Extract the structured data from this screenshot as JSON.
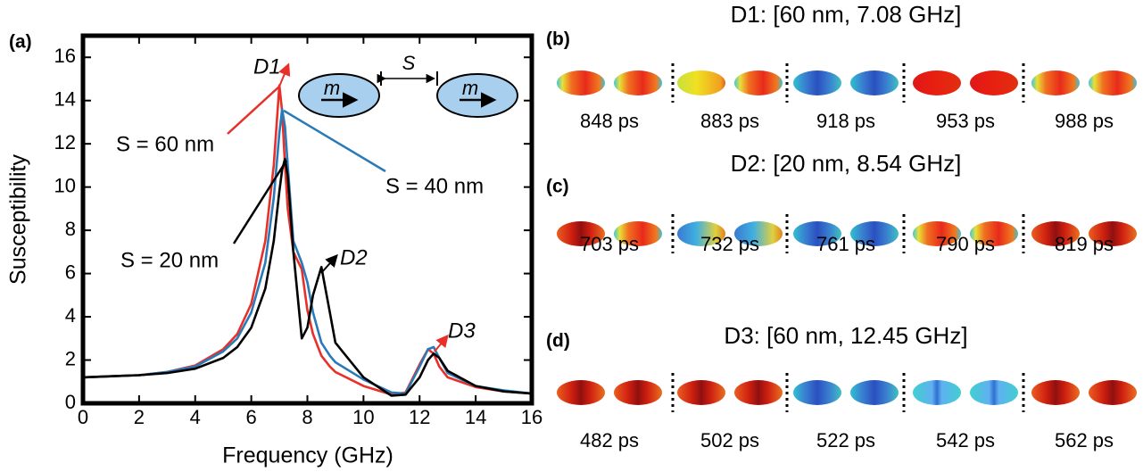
{
  "chart_data": {
    "type": "line",
    "panel_label": "(a)",
    "xlabel": "Frequency (GHz)",
    "ylabel": "Susceptibility",
    "x": [
      0,
      1,
      2,
      3,
      4,
      5,
      5.5,
      6,
      6.5,
      6.8,
      7,
      7.1,
      7.2,
      7.3,
      7.5,
      7.8,
      8,
      8.2,
      8.5,
      8.8,
      9,
      10,
      11,
      11.5,
      12,
      12.3,
      12.5,
      12.7,
      13,
      14,
      15,
      16
    ],
    "series": [
      {
        "name": "S = 60 nm",
        "color": "#e8302a",
        "values": [
          1.2,
          1.25,
          1.3,
          1.45,
          1.75,
          2.5,
          3.2,
          4.6,
          7.5,
          11,
          14.7,
          13.5,
          11,
          9,
          7,
          6.2,
          4.3,
          3.2,
          2.2,
          1.7,
          1.45,
          0.8,
          0.4,
          0.5,
          1.8,
          2.5,
          2.3,
          1.7,
          1.2,
          0.75,
          0.55,
          0.45
        ]
      },
      {
        "name": "S = 40 nm",
        "color": "#2a7ab8",
        "values": [
          1.2,
          1.25,
          1.3,
          1.45,
          1.7,
          2.4,
          3.0,
          4.2,
          6.5,
          9.5,
          12.5,
          13.6,
          12.8,
          11,
          7.5,
          6.5,
          5.6,
          4.2,
          2.8,
          2.2,
          1.9,
          1.1,
          0.5,
          0.45,
          1.7,
          2.5,
          2.6,
          2.1,
          1.4,
          0.8,
          0.6,
          0.45
        ]
      },
      {
        "name": "S = 20 nm",
        "color": "#000000",
        "values": [
          1.2,
          1.25,
          1.3,
          1.4,
          1.6,
          2.1,
          2.6,
          3.5,
          5.3,
          7.5,
          9.8,
          10.8,
          11.3,
          10.5,
          7,
          3.0,
          3.5,
          5,
          6.3,
          4.2,
          2.8,
          1.2,
          0.35,
          0.4,
          1.2,
          2.0,
          2.3,
          2.1,
          1.5,
          0.8,
          0.55,
          0.45
        ]
      }
    ],
    "annotations": [
      {
        "text": "D1",
        "color": "#e8302a"
      },
      {
        "text": "D2",
        "color": "#000000"
      },
      {
        "text": "D3",
        "color": "#e8302a"
      }
    ],
    "inset": {
      "magnetization": "m",
      "spacing": "S"
    },
    "xlim": [
      0,
      16
    ],
    "ylim": [
      0,
      17
    ],
    "xticks": [
      0,
      2,
      4,
      6,
      8,
      10,
      12,
      14,
      16
    ],
    "yticks": [
      0,
      2,
      4,
      6,
      8,
      10,
      12,
      14,
      16
    ]
  },
  "panels": [
    {
      "label": "(b)",
      "title": "D1: [60 nm, 7.08 GHz]",
      "color": "#e8302a",
      "times": [
        "848 ps",
        "883 ps",
        "918 ps",
        "953 ps",
        "988 ps"
      ]
    },
    {
      "label": "(c)",
      "title": "D2: [20 nm, 8.54 GHz]",
      "color": "#000000",
      "times": [
        "703 ps",
        "732 ps",
        "761 ps",
        "790 ps",
        "819 ps"
      ]
    },
    {
      "label": "(d)",
      "title": "D3: [60 nm, 12.45 GHz]",
      "color": "#e8302a",
      "times": [
        "482 ps",
        "502 ps",
        "522 ps",
        "542 ps",
        "562 ps"
      ]
    }
  ]
}
